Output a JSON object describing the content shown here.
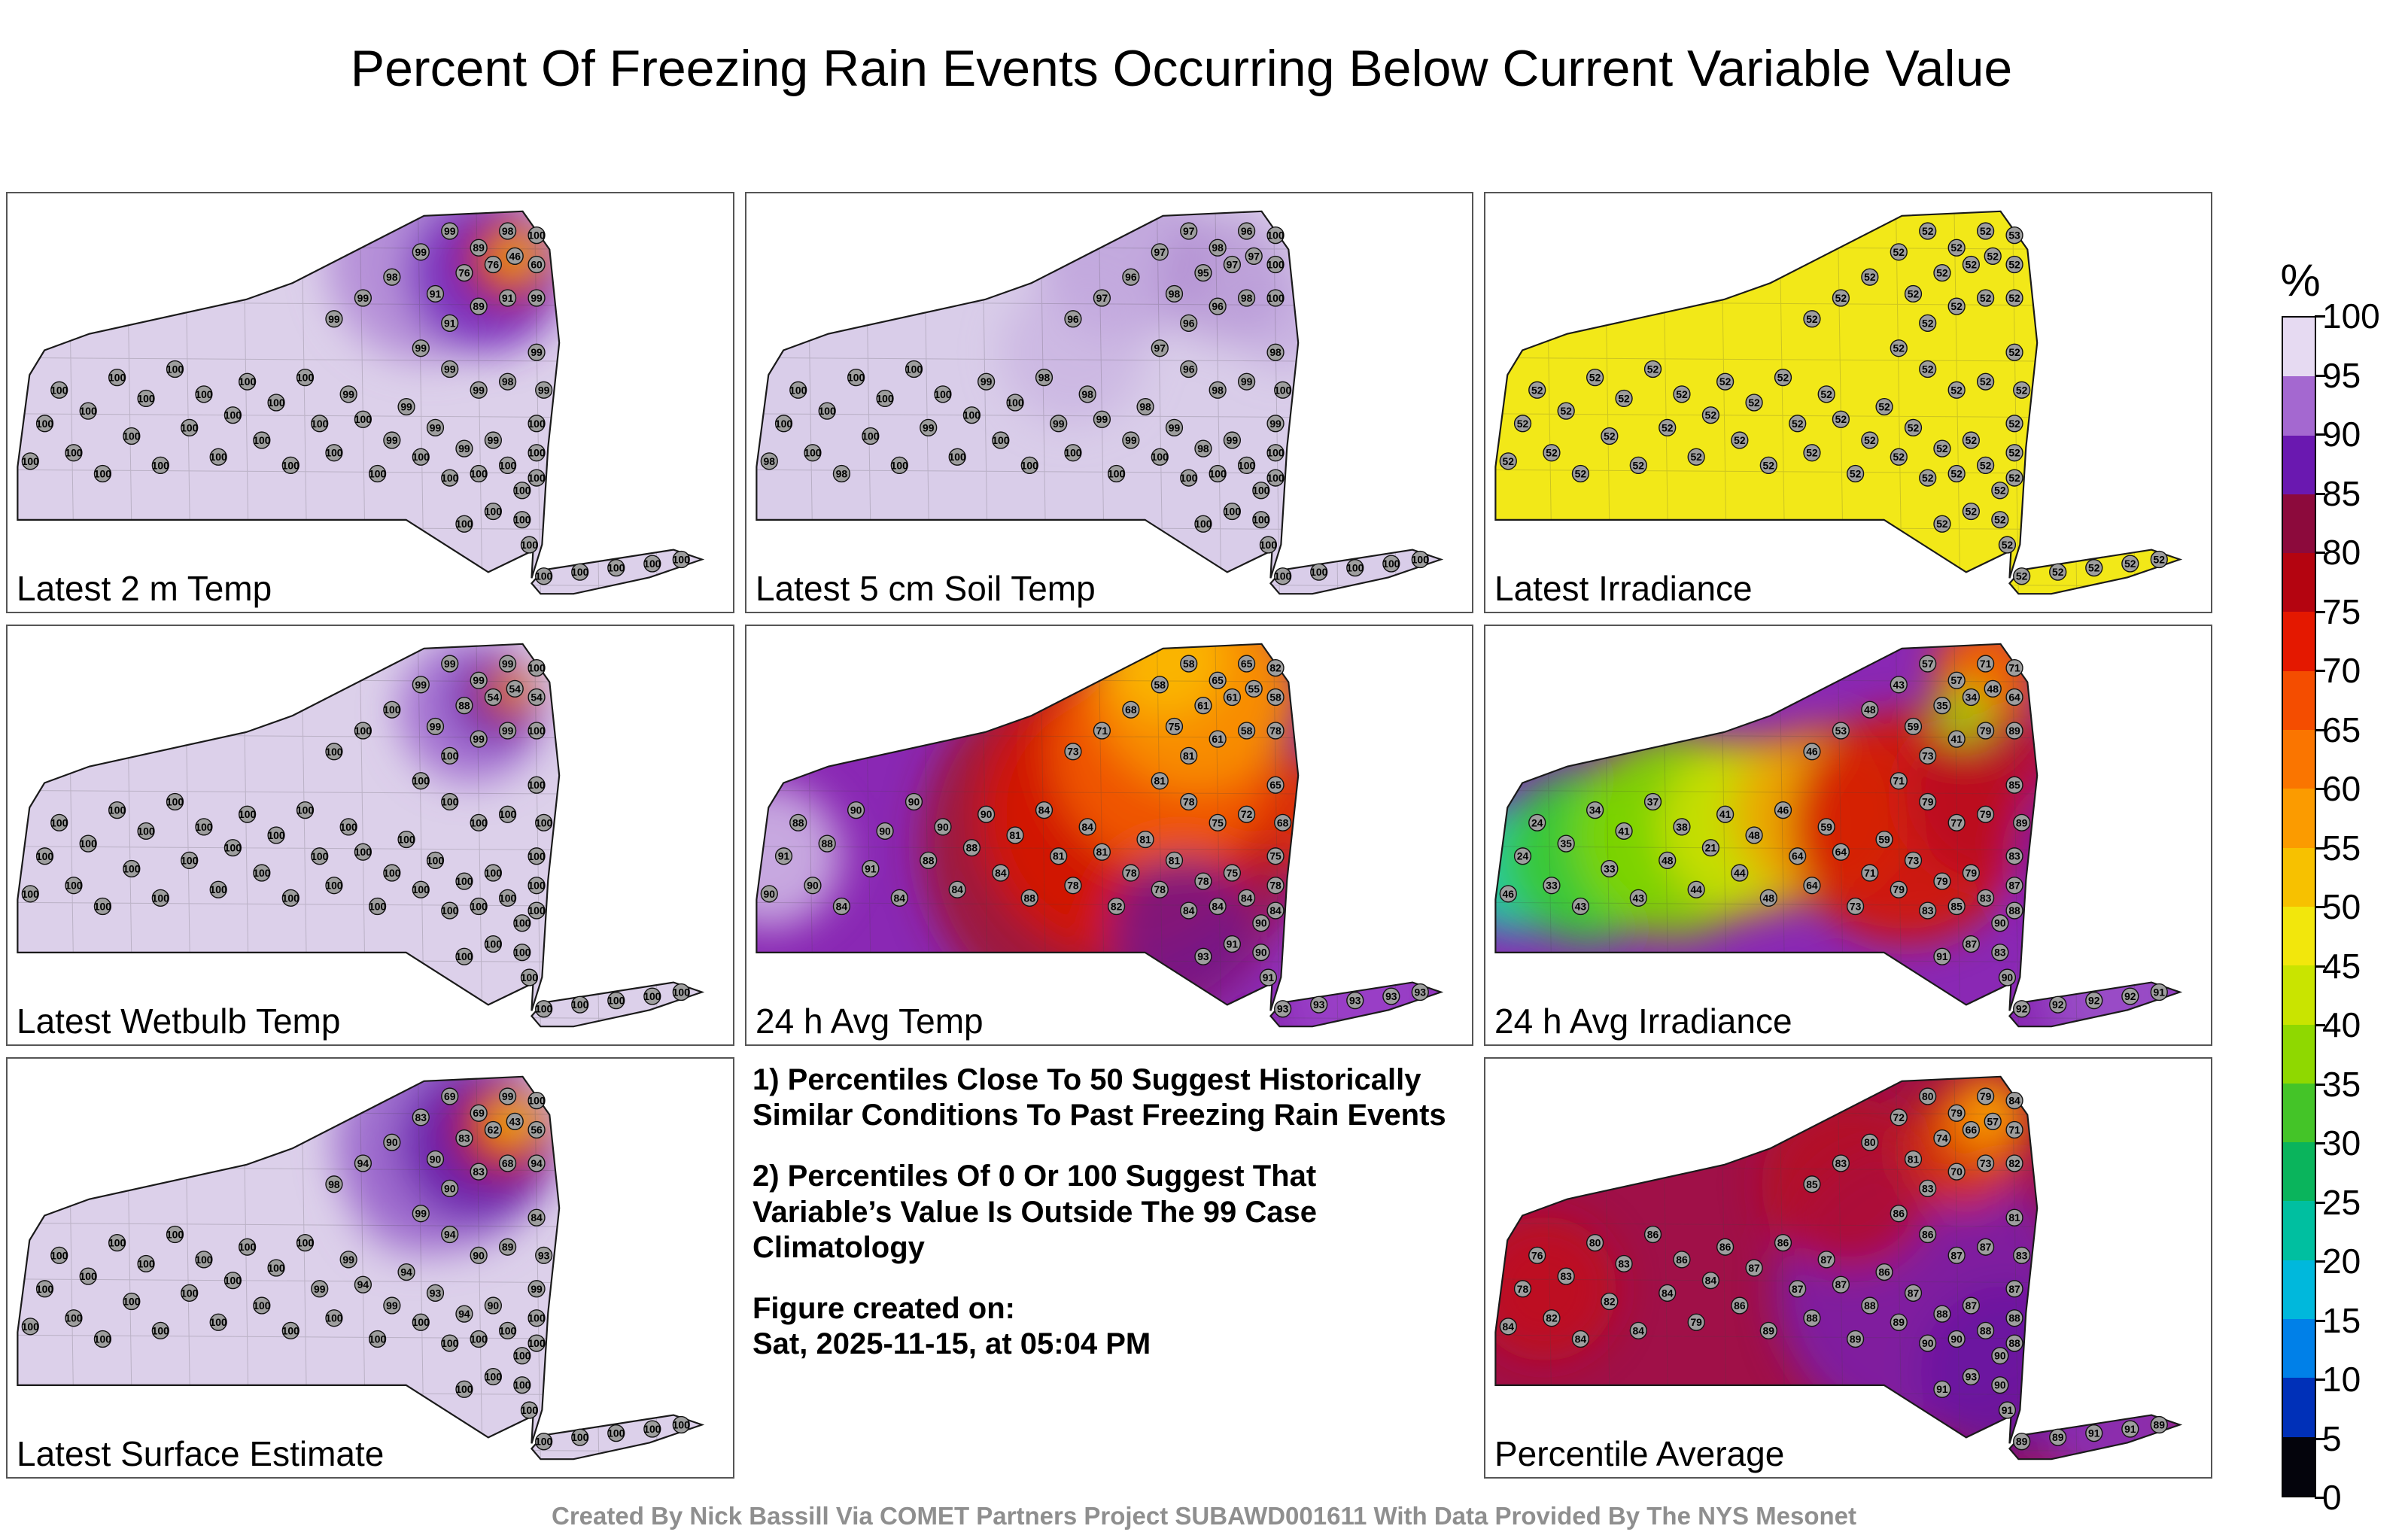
{
  "title": "Percent Of Freezing Rain Events Occurring Below Current Variable Value",
  "footer": "Created By Nick Bassill Via COMET Partners Project SUBAWD001611 With Data Provided By The NYS Mesonet",
  "notes": {
    "p1": "1) Percentiles Close To 50 Suggest Historically Similar Conditions To Past Freezing Rain Events",
    "p2": "2) Percentiles Of 0 Or 100 Suggest That Variable’s Value Is Outside The 99 Case Climatology",
    "created_label": "Figure created on:",
    "created_value": "Sat, 2025-11-15, at 05:04 PM"
  },
  "chart_data": {
    "type": "heatmap",
    "unit": "%",
    "colorbar": {
      "label": "%",
      "ticks": [
        100,
        95,
        90,
        85,
        80,
        75,
        70,
        65,
        60,
        55,
        50,
        45,
        40,
        35,
        30,
        25,
        20,
        15,
        10,
        5,
        0
      ],
      "band_colors": [
        "#e6daf2",
        "#a468d0",
        "#6a18b0",
        "#8c0a3c",
        "#b40410",
        "#e41800",
        "#f44d00",
        "#fa7500",
        "#fb9b00",
        "#f7c100",
        "#f2e70c",
        "#c9e400",
        "#8fd800",
        "#44c428",
        "#0ab45c",
        "#00bfa0",
        "#00b8dc",
        "#0080e8",
        "#0030b8",
        "#04040c"
      ]
    },
    "station_coords": [
      [
        3,
        64
      ],
      [
        5,
        55
      ],
      [
        7,
        47
      ],
      [
        9,
        62
      ],
      [
        11,
        52
      ],
      [
        13,
        67
      ],
      [
        15,
        44
      ],
      [
        17,
        58
      ],
      [
        19,
        49
      ],
      [
        21,
        65
      ],
      [
        23,
        42
      ],
      [
        25,
        56
      ],
      [
        27,
        48
      ],
      [
        29,
        63
      ],
      [
        31,
        53
      ],
      [
        33,
        45
      ],
      [
        35,
        59
      ],
      [
        37,
        50
      ],
      [
        39,
        65
      ],
      [
        41,
        44
      ],
      [
        43,
        55
      ],
      [
        45,
        62
      ],
      [
        47,
        48
      ],
      [
        49,
        54
      ],
      [
        51,
        67
      ],
      [
        53,
        59
      ],
      [
        55,
        51
      ],
      [
        57,
        63
      ],
      [
        59,
        56
      ],
      [
        61,
        68
      ],
      [
        63,
        61
      ],
      [
        65,
        67
      ],
      [
        67,
        59
      ],
      [
        69,
        65
      ],
      [
        71,
        71
      ],
      [
        67,
        76
      ],
      [
        63,
        79
      ],
      [
        45,
        30
      ],
      [
        49,
        25
      ],
      [
        53,
        20
      ],
      [
        57,
        14
      ],
      [
        61,
        9
      ],
      [
        65,
        13
      ],
      [
        69,
        9
      ],
      [
        73,
        10
      ],
      [
        59,
        24
      ],
      [
        63,
        19
      ],
      [
        67,
        17
      ],
      [
        70,
        15
      ],
      [
        73,
        17
      ],
      [
        61,
        31
      ],
      [
        65,
        27
      ],
      [
        69,
        25
      ],
      [
        73,
        25
      ],
      [
        57,
        37
      ],
      [
        61,
        42
      ],
      [
        65,
        47
      ],
      [
        69,
        45
      ],
      [
        73,
        38
      ],
      [
        74,
        47
      ],
      [
        73,
        55
      ],
      [
        73,
        62
      ],
      [
        73,
        68
      ],
      [
        71,
        78
      ],
      [
        72,
        84
      ],
      [
        74,
        91.5
      ],
      [
        79,
        90.5
      ],
      [
        84,
        89.5
      ],
      [
        89,
        88.5
      ],
      [
        93,
        87.5
      ]
    ],
    "maps": [
      {
        "label": "Latest 2 m Temp",
        "base": "#dcd0ea",
        "blobs": [
          [
            58,
            16,
            14,
            "#b18ad6",
            0.9
          ],
          [
            66,
            19,
            11,
            "#7a2fc0",
            0.95
          ],
          [
            69,
            16,
            6.5,
            "#a01830",
            0.95
          ],
          [
            69.5,
            15.5,
            4.5,
            "#e03010",
            1
          ],
          [
            70,
            15,
            2.6,
            "#f6a000",
            1
          ],
          [
            70.3,
            14.8,
            1.5,
            "#f2d800",
            1
          ]
        ],
        "values": [
          100,
          100,
          100,
          100,
          100,
          100,
          100,
          100,
          100,
          100,
          100,
          100,
          100,
          100,
          100,
          100,
          100,
          100,
          100,
          100,
          100,
          100,
          99,
          100,
          100,
          99,
          99,
          100,
          99,
          100,
          99,
          100,
          99,
          100,
          100,
          100,
          100,
          99,
          99,
          98,
          99,
          99,
          89,
          98,
          100,
          91,
          76,
          76,
          46,
          60,
          91,
          89,
          91,
          99,
          99,
          99,
          99,
          98,
          99,
          99,
          100,
          100,
          100,
          100,
          100,
          100,
          100,
          100,
          100,
          100
        ]
      },
      {
        "label": "Latest 5 cm Soil Temp",
        "base": "#d9cde9",
        "blobs": [
          [
            52,
            14,
            12,
            "#b99ad9",
            0.7
          ],
          [
            66,
            20,
            9,
            "#ab86cf",
            0.6
          ],
          [
            45,
            38,
            10,
            "#c5abdf",
            0.6
          ],
          [
            74,
            30,
            7,
            "#b99ad9",
            0.5
          ]
        ],
        "values": [
          98,
          100,
          100,
          100,
          100,
          98,
          100,
          100,
          100,
          100,
          100,
          99,
          100,
          100,
          100,
          99,
          100,
          100,
          100,
          98,
          99,
          100,
          98,
          99,
          100,
          99,
          98,
          100,
          99,
          100,
          98,
          100,
          99,
          100,
          100,
          100,
          100,
          96,
          97,
          96,
          97,
          97,
          98,
          96,
          100,
          98,
          95,
          97,
          97,
          100,
          96,
          96,
          98,
          100,
          97,
          96,
          98,
          99,
          98,
          100,
          99,
          100,
          100,
          100,
          100,
          100,
          100,
          100,
          100,
          100
        ]
      },
      {
        "label": "Latest Irradiance",
        "base": "#f2e818",
        "blobs": [],
        "values": [
          52,
          52,
          52,
          52,
          52,
          52,
          52,
          52,
          52,
          52,
          52,
          52,
          52,
          52,
          52,
          52,
          52,
          52,
          52,
          52,
          52,
          52,
          52,
          52,
          52,
          52,
          52,
          52,
          52,
          52,
          52,
          52,
          52,
          52,
          52,
          52,
          52,
          52,
          52,
          52,
          52,
          52,
          52,
          52,
          53,
          52,
          52,
          52,
          52,
          52,
          52,
          52,
          52,
          52,
          52,
          52,
          52,
          52,
          52,
          52,
          52,
          52,
          52,
          52,
          52,
          52,
          52,
          52,
          52,
          52
        ]
      },
      {
        "label": "Latest Wetbulb Temp",
        "base": "#dcd0ea",
        "blobs": [
          [
            64,
            20,
            10,
            "#9a60cc",
            0.85
          ],
          [
            67.5,
            17.5,
            6,
            "#6a1fae",
            0.95
          ],
          [
            69,
            16,
            4,
            "#b01020",
            1
          ],
          [
            69.5,
            15.5,
            2.4,
            "#f07000",
            1
          ],
          [
            69.8,
            15.2,
            1.3,
            "#f4d000",
            1
          ]
        ],
        "values": [
          100,
          100,
          100,
          100,
          100,
          100,
          100,
          100,
          100,
          100,
          100,
          100,
          100,
          100,
          100,
          100,
          100,
          100,
          100,
          100,
          100,
          100,
          100,
          100,
          100,
          100,
          100,
          100,
          100,
          100,
          100,
          100,
          100,
          100,
          100,
          100,
          100,
          100,
          100,
          100,
          99,
          99,
          99,
          99,
          100,
          99,
          88,
          54,
          54,
          54,
          100,
          99,
          99,
          100,
          100,
          100,
          100,
          100,
          100,
          100,
          100,
          100,
          100,
          100,
          100,
          100,
          100,
          100,
          100,
          100
        ]
      },
      {
        "label": "24 h Avg Temp",
        "base": "#8a28b4",
        "blobs": [
          [
            3,
            55,
            10,
            "#cdb6e4",
            0.9
          ],
          [
            50,
            52,
            26,
            "#a01430",
            0.9
          ],
          [
            52,
            45,
            20,
            "#d41400",
            0.95
          ],
          [
            58,
            30,
            16,
            "#f05800",
            0.95
          ],
          [
            62,
            15,
            14,
            "#f88c00",
            1
          ],
          [
            58,
            8,
            8,
            "#fab400",
            1
          ],
          [
            79,
            45,
            8,
            "#e03000",
            0.9
          ],
          [
            60,
            72,
            10,
            "#6a14a0",
            0.75
          ],
          [
            85,
            88,
            11,
            "#9a40c8",
            0.9
          ]
        ],
        "values": [
          90,
          91,
          88,
          90,
          88,
          84,
          90,
          91,
          90,
          84,
          90,
          88,
          90,
          84,
          88,
          90,
          84,
          81,
          88,
          84,
          81,
          78,
          84,
          81,
          82,
          78,
          81,
          78,
          81,
          84,
          78,
          84,
          75,
          84,
          90,
          91,
          93,
          73,
          71,
          68,
          58,
          58,
          65,
          65,
          82,
          75,
          61,
          61,
          55,
          58,
          81,
          61,
          58,
          78,
          81,
          78,
          75,
          72,
          65,
          68,
          75,
          78,
          84,
          90,
          91,
          93,
          93,
          93,
          93,
          93
        ]
      },
      {
        "label": "24 h Avg Irradiance",
        "base": "#8a28b4",
        "blobs": [
          [
            4,
            58,
            9,
            "#20c8a8",
            1
          ],
          [
            14,
            55,
            12,
            "#38c838",
            1
          ],
          [
            26,
            50,
            14,
            "#7fd400",
            0.95
          ],
          [
            36,
            48,
            12,
            "#cce000",
            0.9
          ],
          [
            46,
            45,
            12,
            "#f0a000",
            0.85
          ],
          [
            58,
            48,
            16,
            "#d41400",
            0.9
          ],
          [
            70,
            40,
            12,
            "#b80e20",
            0.85
          ],
          [
            69,
            11,
            7,
            "#f06000",
            1
          ],
          [
            66,
            21,
            4,
            "#a0d800",
            0.9
          ],
          [
            85,
            55,
            12,
            "#7a1fae",
            0.8
          ],
          [
            87,
            88,
            10,
            "#9a50c8",
            0.9
          ]
        ],
        "values": [
          46,
          24,
          24,
          33,
          35,
          43,
          34,
          33,
          41,
          43,
          37,
          48,
          38,
          44,
          21,
          41,
          44,
          48,
          48,
          46,
          64,
          64,
          59,
          64,
          73,
          71,
          59,
          79,
          73,
          83,
          79,
          85,
          79,
          83,
          90,
          87,
          91,
          46,
          53,
          48,
          43,
          57,
          57,
          71,
          71,
          59,
          35,
          34,
          48,
          64,
          73,
          41,
          79,
          89,
          71,
          79,
          77,
          79,
          85,
          89,
          83,
          87,
          88,
          83,
          90,
          92,
          92,
          92,
          92,
          91
        ]
      },
      {
        "label": "Latest Surface Estimate",
        "base": "#dcd0ea",
        "blobs": [
          [
            56,
            32,
            9,
            "#b18ad6",
            0.7
          ],
          [
            60,
            20,
            15,
            "#9a66cc",
            0.9
          ],
          [
            65,
            20,
            11,
            "#6a1fae",
            0.95
          ],
          [
            68,
            17,
            7,
            "#a01430",
            0.95
          ],
          [
            69,
            16,
            5,
            "#e03010",
            1
          ],
          [
            69.5,
            15,
            3,
            "#f6a000",
            1
          ],
          [
            70,
            14.6,
            1.8,
            "#f2d800",
            1
          ]
        ],
        "values": [
          100,
          100,
          100,
          100,
          100,
          100,
          100,
          100,
          100,
          100,
          100,
          100,
          100,
          100,
          100,
          100,
          100,
          100,
          100,
          100,
          99,
          100,
          99,
          94,
          100,
          99,
          94,
          100,
          93,
          100,
          94,
          100,
          90,
          100,
          100,
          100,
          100,
          98,
          94,
          90,
          83,
          69,
          69,
          99,
          100,
          90,
          83,
          62,
          43,
          56,
          90,
          83,
          68,
          94,
          99,
          94,
          90,
          89,
          84,
          93,
          99,
          100,
          100,
          100,
          100,
          100,
          100,
          100,
          100,
          100
        ]
      },
      {
        "label": "Percentile Average",
        "base": "#a01048",
        "blobs": [
          [
            60,
            55,
            20,
            "#7a1fae",
            0.85
          ],
          [
            72,
            75,
            12,
            "#6a14a0",
            0.9
          ],
          [
            50,
            30,
            12,
            "#b80e20",
            0.8
          ],
          [
            66,
            22,
            8,
            "#d43000",
            0.95
          ],
          [
            69,
            14,
            6,
            "#f07800",
            1
          ],
          [
            70,
            12,
            3,
            "#f8a800",
            1
          ],
          [
            8,
            55,
            10,
            "#c01020",
            0.9
          ],
          [
            87,
            87,
            10,
            "#8a30b8",
            0.9
          ]
        ],
        "values": [
          84,
          78,
          76,
          82,
          83,
          84,
          80,
          82,
          83,
          84,
          86,
          84,
          86,
          79,
          84,
          86,
          86,
          87,
          89,
          86,
          87,
          88,
          87,
          87,
          89,
          88,
          86,
          89,
          87,
          90,
          88,
          90,
          87,
          88,
          90,
          93,
          91,
          85,
          83,
          80,
          72,
          80,
          79,
          79,
          84,
          81,
          74,
          66,
          57,
          71,
          83,
          70,
          73,
          82,
          86,
          86,
          87,
          87,
          81,
          83,
          87,
          88,
          88,
          90,
          91,
          89,
          89,
          91,
          91,
          89
        ]
      }
    ]
  }
}
